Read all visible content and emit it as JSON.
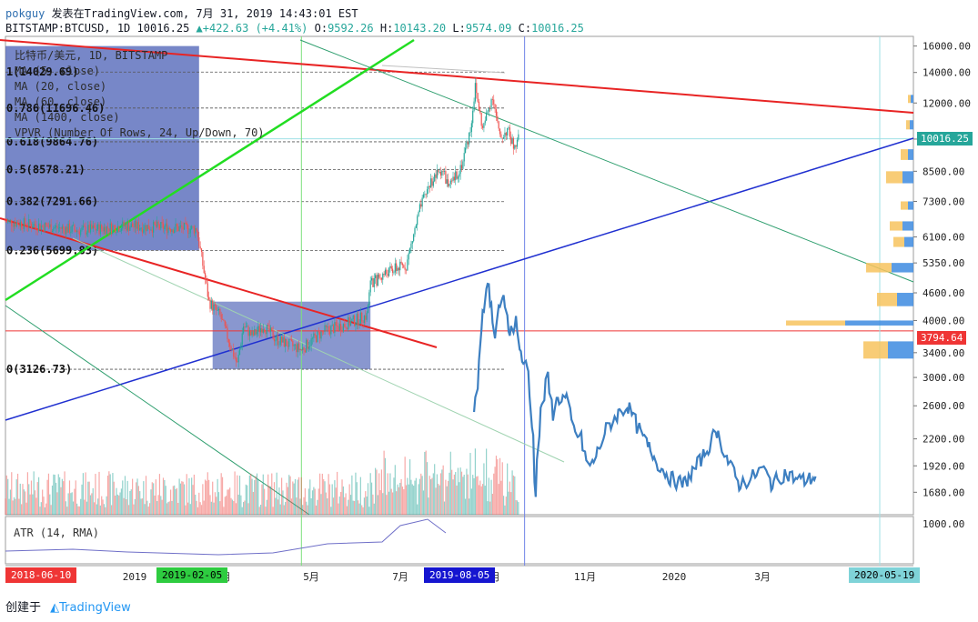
{
  "header": {
    "publisher": "pokguy",
    "published_on": "发表在TradingView.com, 7月 31, 2019 14:43:01 EST",
    "symbol_line": "BITSTAMP:BTCUSD, 1D",
    "last": "10016.25",
    "change_arrow": "▲",
    "change": "+422.63 (+4.41%)",
    "ohlc": {
      "O": "9592.26",
      "H": "10143.20",
      "L": "9574.09",
      "C": "10016.25"
    }
  },
  "legend": {
    "title": "比特币/美元, 1D, BITSTAMP",
    "indicators": [
      "MA (5, close)",
      "MA (20, close)",
      "MA (60, close)",
      "MA (1400, close)",
      "VPVR (Number Of Rows, 24, Up/Down, 70)"
    ]
  },
  "fib_labels": [
    "1(14029.69)",
    "0.786(11696.46)",
    "0.618(9864.76)",
    "0.5(8578.21)",
    "0.382(7291.66)",
    "0.236(5699.83)",
    "0(3126.73)"
  ],
  "price_tags": {
    "current": "10016.25",
    "current_color": "#26a69a",
    "marker": "3794.64",
    "marker_color": "#ef3535"
  },
  "x_tags": [
    {
      "label": "2018-06-10",
      "bg": "#ef3535",
      "fg": "#ffffff"
    },
    {
      "label": "2019-02-05",
      "bg": "#2ecc40",
      "fg": "#000000"
    },
    {
      "label": "2019-08-05",
      "bg": "#1515d0",
      "fg": "#ffffff"
    },
    {
      "label": "2020-05-19",
      "bg": "#7fd3d8",
      "fg": "#000000"
    }
  ],
  "atr": {
    "label": "ATR (14, RMA)",
    "axis_label": "1000.00"
  },
  "footer": {
    "created_with": "创建于",
    "brand": "TradingView"
  },
  "chart_data": {
    "type": "line",
    "title": "比特币/美元, 1D, BITSTAMP",
    "y_scale": "log",
    "ylim": [
      1500,
      16800
    ],
    "y_ticks": [
      16000,
      14000,
      12000,
      10000,
      8500,
      7300,
      6100,
      5350,
      4600,
      4000,
      3400,
      3000,
      2600,
      2200,
      1920,
      1680
    ],
    "x_ticks": [
      "2019",
      "3月",
      "5月",
      "7月",
      "9月",
      "11月",
      "2020",
      "3月",
      "5"
    ],
    "series": [
      {
        "name": "BITSTAMP:BTCUSD",
        "points": [
          [
            "2018-06-10",
            6600
          ],
          [
            "2018-07-20",
            6400
          ],
          [
            "2018-08-10",
            6300
          ],
          [
            "2018-09-15",
            6450
          ],
          [
            "2018-10-20",
            6400
          ],
          [
            "2018-11-12",
            6350
          ],
          [
            "2018-11-16",
            5500
          ],
          [
            "2018-11-22",
            4400
          ],
          [
            "2018-12-01",
            4100
          ],
          [
            "2018-12-10",
            3500
          ],
          [
            "2018-12-15",
            3200
          ],
          [
            "2018-12-20",
            3900
          ],
          [
            "2018-12-27",
            3700
          ],
          [
            "2019-01-05",
            3900
          ],
          [
            "2019-01-15",
            3650
          ],
          [
            "2019-01-25",
            3550
          ],
          [
            "2019-02-05",
            3450
          ],
          [
            "2019-02-15",
            3650
          ],
          [
            "2019-02-24",
            3800
          ],
          [
            "2019-03-10",
            3900
          ],
          [
            "2019-03-30",
            4100
          ],
          [
            "2019-04-02",
            4800
          ],
          [
            "2019-04-15",
            5100
          ],
          [
            "2019-05-01",
            5300
          ],
          [
            "2019-05-12",
            7000
          ],
          [
            "2019-05-20",
            8000
          ],
          [
            "2019-05-30",
            8600
          ],
          [
            "2019-06-05",
            7800
          ],
          [
            "2019-06-15",
            8800
          ],
          [
            "2019-06-22",
            10500
          ],
          [
            "2019-06-26",
            13000
          ],
          [
            "2019-07-02",
            10500
          ],
          [
            "2019-07-10",
            12500
          ],
          [
            "2019-07-16",
            10000
          ],
          [
            "2019-07-22",
            10500
          ],
          [
            "2019-07-28",
            9500
          ],
          [
            "2019-07-31",
            10016.25
          ]
        ]
      },
      {
        "name": "Bars pattern",
        "points": [
          [
            "2019-06-25",
            2500
          ],
          [
            "2019-06-28",
            2900
          ],
          [
            "2019-07-02",
            4100
          ],
          [
            "2019-07-05",
            4600
          ],
          [
            "2019-07-07",
            5000
          ],
          [
            "2019-07-09",
            4200
          ],
          [
            "2019-07-12",
            3600
          ],
          [
            "2019-07-15",
            4300
          ],
          [
            "2019-07-19",
            4400
          ],
          [
            "2019-07-24",
            3800
          ],
          [
            "2019-07-29",
            4000
          ],
          [
            "2019-08-03",
            3300
          ],
          [
            "2019-08-08",
            3100
          ],
          [
            "2019-08-12",
            2200
          ],
          [
            "2019-08-14",
            1700
          ],
          [
            "2019-08-18",
            2500
          ],
          [
            "2019-08-24",
            3000
          ],
          [
            "2019-08-28",
            2500
          ],
          [
            "2019-09-01",
            2700
          ],
          [
            "2019-09-08",
            2700
          ],
          [
            "2019-09-14",
            2300
          ],
          [
            "2019-09-20",
            2200
          ],
          [
            "2019-09-26",
            1900
          ],
          [
            "2019-10-02",
            2000
          ],
          [
            "2019-10-10",
            2300
          ],
          [
            "2019-10-20",
            2500
          ],
          [
            "2019-10-28",
            2600
          ],
          [
            "2019-11-06",
            2300
          ],
          [
            "2019-11-14",
            2100
          ],
          [
            "2019-11-24",
            1900
          ],
          [
            "2019-12-02",
            1800
          ],
          [
            "2019-12-12",
            1750
          ],
          [
            "2019-12-22",
            1900
          ],
          [
            "2020-01-01",
            2100
          ],
          [
            "2020-01-08",
            2300
          ],
          [
            "2020-01-16",
            2000
          ],
          [
            "2020-01-26",
            1750
          ],
          [
            "2020-02-05",
            1800
          ],
          [
            "2020-02-14",
            1900
          ],
          [
            "2020-02-22",
            1750
          ],
          [
            "2020-03-03",
            1850
          ],
          [
            "2020-03-12",
            1800
          ],
          [
            "2020-03-20",
            1780
          ],
          [
            "2020-03-28",
            1820
          ]
        ]
      }
    ],
    "horizontal_lines": [
      14029.69,
      11696.46,
      9864.76,
      8578.21,
      7291.66,
      5699.83,
      3126.73,
      3794.64
    ],
    "colors": {
      "up_candle": "#26a69a",
      "down_candle": "#ef5350",
      "projection": "#3d7fc1",
      "fib_box": "#4a5fb5"
    }
  }
}
